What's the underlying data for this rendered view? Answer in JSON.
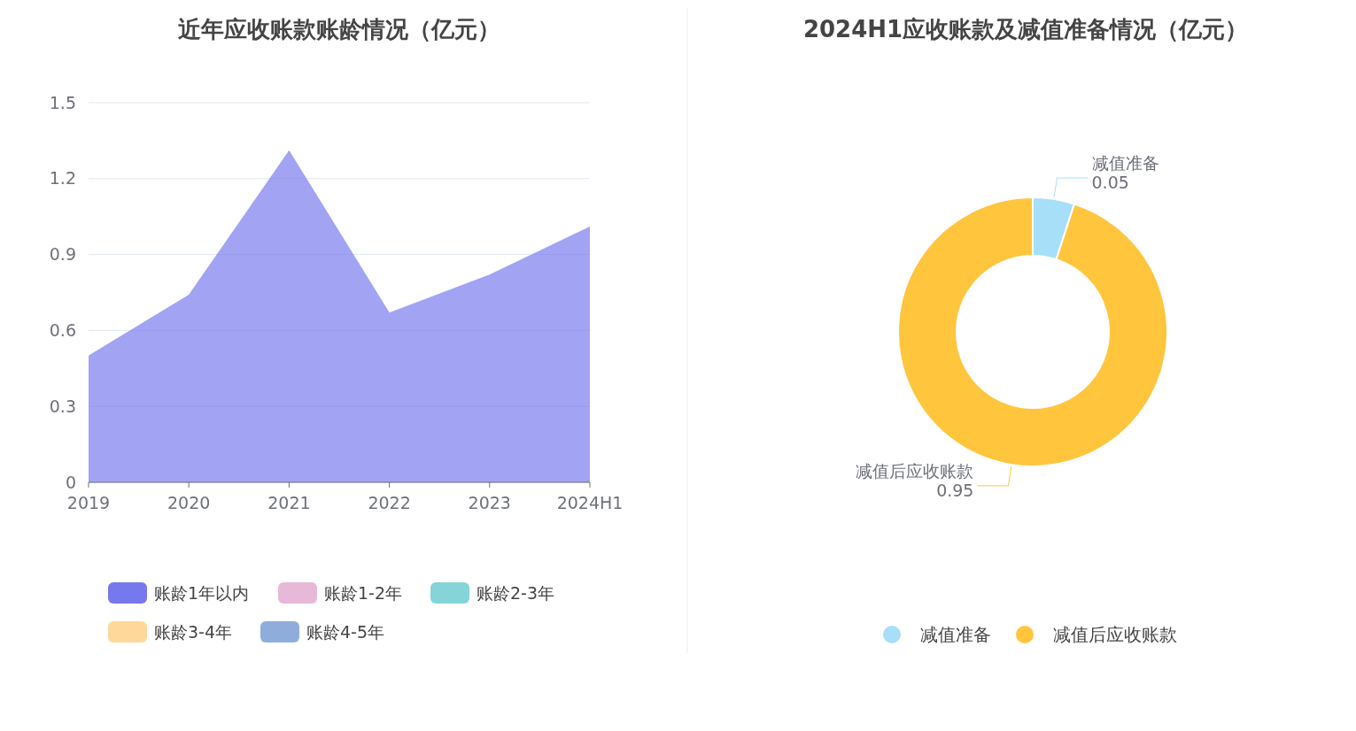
{
  "chart_data": [
    {
      "type": "area",
      "title": "近年应收账款账龄情况（亿元）",
      "categories": [
        "2019",
        "2020",
        "2021",
        "2022",
        "2023",
        "2024H1"
      ],
      "ylim": [
        0,
        1.5
      ],
      "yticks": [
        0,
        0.3,
        0.6,
        0.9,
        1.2,
        1.5
      ],
      "grid": "y",
      "legend": "bottom",
      "series": [
        {
          "name": "账龄1年以内",
          "color": "#7678ed",
          "values": [
            0.5,
            0.74,
            1.31,
            0.67,
            0.82,
            1.01
          ]
        },
        {
          "name": "账龄1-2年",
          "color": "#e8b8d8",
          "values": [
            null,
            null,
            null,
            null,
            null,
            null
          ]
        },
        {
          "name": "账龄2-3年",
          "color": "#84d4d8",
          "values": [
            null,
            null,
            null,
            null,
            null,
            null
          ]
        },
        {
          "name": "账龄3-4年",
          "color": "#fed89a",
          "values": [
            null,
            null,
            null,
            null,
            null,
            null
          ]
        },
        {
          "name": "账龄4-5年",
          "color": "#8eaddb",
          "values": [
            null,
            null,
            null,
            null,
            null,
            null
          ]
        }
      ]
    },
    {
      "type": "donut",
      "title": "2024H1应收账款及减值准备情况（亿元）",
      "categories": [
        "减值准备",
        "减值后应收账款"
      ],
      "values": [
        0.05,
        0.95
      ],
      "colors": [
        "#a8dff8",
        "#ffc53d"
      ],
      "data_labels": true,
      "legend": "bottom"
    }
  ]
}
